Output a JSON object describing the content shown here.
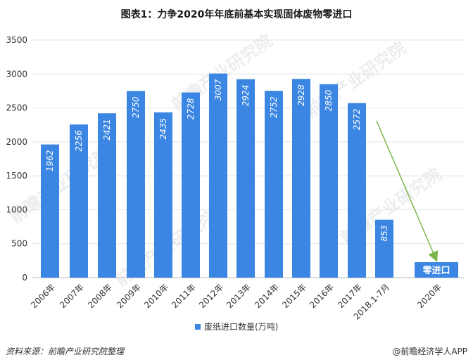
{
  "chart_data": {
    "type": "bar",
    "title": "图表1：力争2020年年底前基本实现固体废物零进口",
    "categories": [
      "2006年",
      "2007年",
      "2008年",
      "2009年",
      "2010年",
      "2011年",
      "2012年",
      "2013年",
      "2014年",
      "2015年",
      "2016年",
      "2017年",
      "2018.1-7月",
      "2020年"
    ],
    "series": [
      {
        "name": "废纸进口数量(万吨)",
        "values": [
          1962,
          2256,
          2421,
          2750,
          2435,
          2728,
          3007,
          2924,
          2752,
          2928,
          2850,
          2572,
          853,
          0
        ],
        "value_labels": [
          "1962",
          "2256",
          "2421",
          "2750",
          "2435",
          "2728",
          "3007",
          "2924",
          "2752",
          "2928",
          "2850",
          "2572",
          "853",
          "零进口"
        ]
      }
    ],
    "ylim": [
      0,
      3500
    ],
    "yticks": [
      0,
      500,
      1000,
      1500,
      2000,
      2500,
      3000,
      3500
    ],
    "xlabel": "",
    "ylabel": "",
    "grid": true,
    "legend_position": "bottom",
    "annotation": "arrow from 2017年 bar down to 2020年 零进口",
    "colors": {
      "bar": "#3a86e2",
      "arrow": "#7ab648",
      "grid": "#e3e3e3"
    }
  },
  "footer": {
    "source": "资料来源：前瞻产业研究院整理",
    "credit": "@前瞻经济学人APP"
  },
  "watermark": "前瞻产业研究院"
}
